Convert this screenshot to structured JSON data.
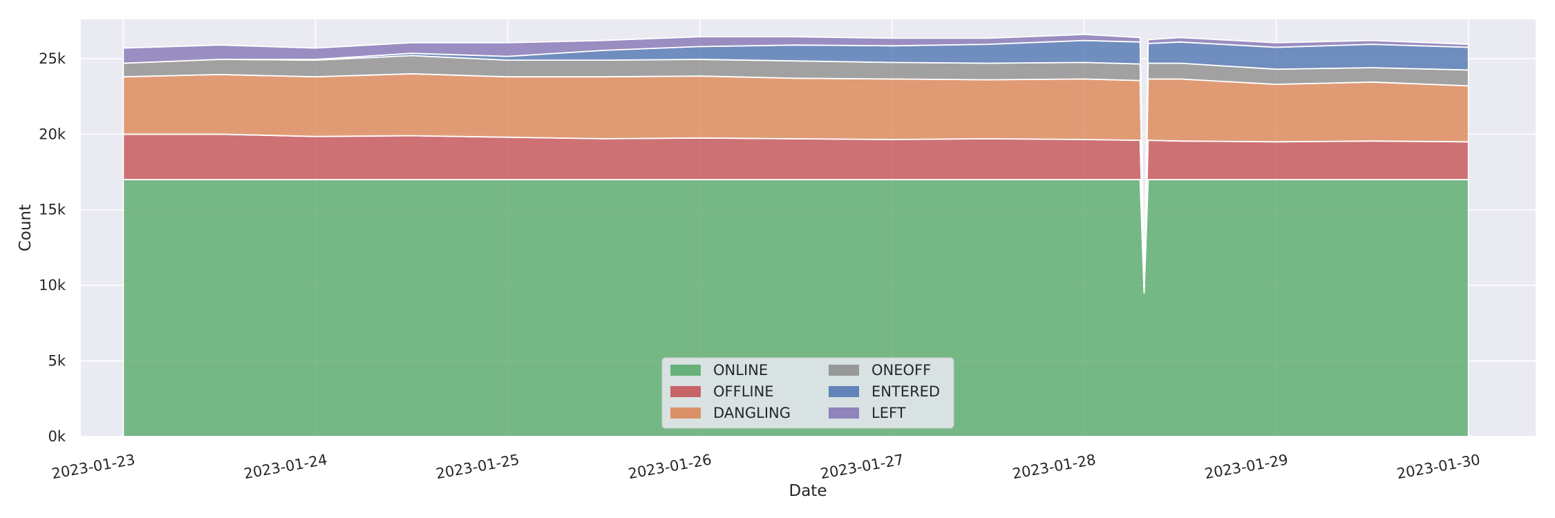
{
  "chart_data": {
    "type": "area",
    "stacked": true,
    "xlabel": "Date",
    "ylabel": "Count",
    "x_ticks": [
      "2023-01-23",
      "2023-01-24",
      "2023-01-25",
      "2023-01-26",
      "2023-01-27",
      "2023-01-28",
      "2023-01-29",
      "2023-01-30"
    ],
    "y_ticks": [
      "0k",
      "5k",
      "10k",
      "15k",
      "20k",
      "25k"
    ],
    "ylim": [
      0,
      27600
    ],
    "xlim": [
      "2023-01-22T18:42",
      "2023-01-30T08:24"
    ],
    "grid": true,
    "background": "#eaeaf2",
    "legend": {
      "placement": "bottom-center",
      "columns": 2,
      "order": [
        "ONLINE",
        "OFFLINE",
        "DANGLING",
        "ONEOFF",
        "ENTERED",
        "LEFT"
      ]
    },
    "x": [
      "2023-01-23T00:00",
      "2023-01-23T12:00",
      "2023-01-24T00:00",
      "2023-01-24T12:00",
      "2023-01-25T00:00",
      "2023-01-25T12:00",
      "2023-01-26T00:00",
      "2023-01-26T12:00",
      "2023-01-27T00:00",
      "2023-01-27T12:00",
      "2023-01-28T00:00",
      "2023-01-28T07:00",
      "2023-01-28T07:30",
      "2023-01-28T08:00",
      "2023-01-28T12:00",
      "2023-01-29T00:00",
      "2023-01-29T12:00",
      "2023-01-30T00:00"
    ],
    "series": [
      {
        "name": "ONLINE",
        "color": "#55a868",
        "values": [
          17000,
          17000,
          17000,
          17000,
          17000,
          17000,
          17000,
          17000,
          17000,
          17000,
          17000,
          17000,
          9500,
          17000,
          17000,
          17000,
          17000,
          17000
        ]
      },
      {
        "name": "OFFLINE",
        "color": "#c44e52",
        "values": [
          3000,
          3000,
          2850,
          2900,
          2800,
          2700,
          2750,
          2700,
          2650,
          2700,
          2650,
          2600,
          0,
          2600,
          2550,
          2500,
          2550,
          2500
        ]
      },
      {
        "name": "DANGLING",
        "color": "#dd8452",
        "values": [
          3800,
          3950,
          3950,
          4100,
          4000,
          4100,
          4100,
          4000,
          4000,
          3900,
          4000,
          3950,
          0,
          4050,
          4100,
          3800,
          3900,
          3700
        ]
      },
      {
        "name": "ONEOFF",
        "color": "#8c8c8c",
        "values": [
          900,
          1000,
          1100,
          1200,
          1100,
          1100,
          1100,
          1150,
          1100,
          1100,
          1100,
          1100,
          0,
          1050,
          1050,
          1000,
          950,
          1050
        ]
      },
      {
        "name": "ENTERED",
        "color": "#4c72b0",
        "values": [
          0,
          0,
          50,
          150,
          250,
          650,
          850,
          1050,
          1100,
          1250,
          1450,
          1450,
          0,
          1300,
          1400,
          1450,
          1550,
          1500
        ]
      },
      {
        "name": "LEFT",
        "color": "#8172b3",
        "values": [
          1000,
          950,
          750,
          700,
          900,
          650,
          650,
          550,
          500,
          400,
          400,
          300,
          0,
          250,
          300,
          300,
          250,
          200
        ]
      }
    ]
  }
}
